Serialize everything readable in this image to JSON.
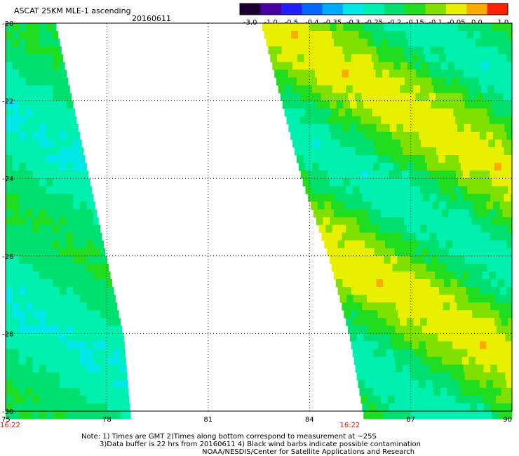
{
  "header": {
    "title": "ASCAT 25KM MLE-1 ascending",
    "date": "20160611"
  },
  "notes": {
    "line1": "Note: 1) Times are GMT 2)Times along bottom correspond to measurement at ~25S",
    "line2": "3)Data buffer is 22 hrs from 20160611 4) Black wind barbs indicate possible contamination",
    "credit": "NOAA/NESDIS/Center for Satellite Applications and Research"
  },
  "chart_data": {
    "type": "heatmap",
    "title": "ASCAT 25KM MLE-1 ascending",
    "xlabel": "",
    "ylabel": "",
    "xlim": [
      75,
      90
    ],
    "ylim": [
      -30,
      -20
    ],
    "x_ticks": [
      75,
      78,
      81,
      84,
      87,
      90
    ],
    "x_tick_labels": [
      "75",
      "78",
      "81",
      "84",
      "87",
      "90"
    ],
    "y_ticks": [
      -20,
      -22,
      -24,
      -26,
      -28,
      -30
    ],
    "y_tick_labels": [
      "-20",
      "-22",
      "-24",
      "-26",
      "-28",
      "-30"
    ],
    "time_labels": [
      {
        "lon": 75,
        "text": "16:22"
      },
      {
        "lon": 85.2,
        "text": "16:22"
      }
    ],
    "grid": true,
    "colorbar": {
      "labels": [
        "-3.0",
        "-1.0",
        "-0.5",
        "-0.4",
        "-0.35",
        "-0.3",
        "-0.25",
        "-0.2",
        "-0.15",
        "-0.1",
        "-0.05",
        "0.0",
        "1.0"
      ],
      "colors": [
        "#1a0030",
        "#4a00a0",
        "#2020ff",
        "#0066ff",
        "#00aaff",
        "#00e8e8",
        "#00f0b0",
        "#00e070",
        "#20dd20",
        "#80e000",
        "#e8f000",
        "#ffaa00",
        "#ff2000"
      ]
    },
    "swaths": [
      {
        "name": "west",
        "edges": [
          {
            "lat": -20.0,
            "east_lon": 76.5
          },
          {
            "lat": -22.0,
            "east_lon": 77.0
          },
          {
            "lat": -24.0,
            "east_lon": 77.5
          },
          {
            "lat": -26.0,
            "east_lon": 78.0
          },
          {
            "lat": -28.0,
            "east_lon": 78.5
          },
          {
            "lat": -30.0,
            "east_lon": 78.7
          }
        ],
        "value_range": [
          -0.3,
          -0.15
        ]
      },
      {
        "name": "east",
        "edges": [
          {
            "lat": -20.0,
            "west_lon": 82.6
          },
          {
            "lat": -22.0,
            "west_lon": 83.2
          },
          {
            "lat": -24.0,
            "west_lon": 83.8
          },
          {
            "lat": -26.0,
            "west_lon": 84.6
          },
          {
            "lat": -28.0,
            "west_lon": 85.2
          },
          {
            "lat": -30.0,
            "west_lon": 85.6
          }
        ],
        "value_range": [
          -0.3,
          0.0
        ]
      }
    ]
  }
}
